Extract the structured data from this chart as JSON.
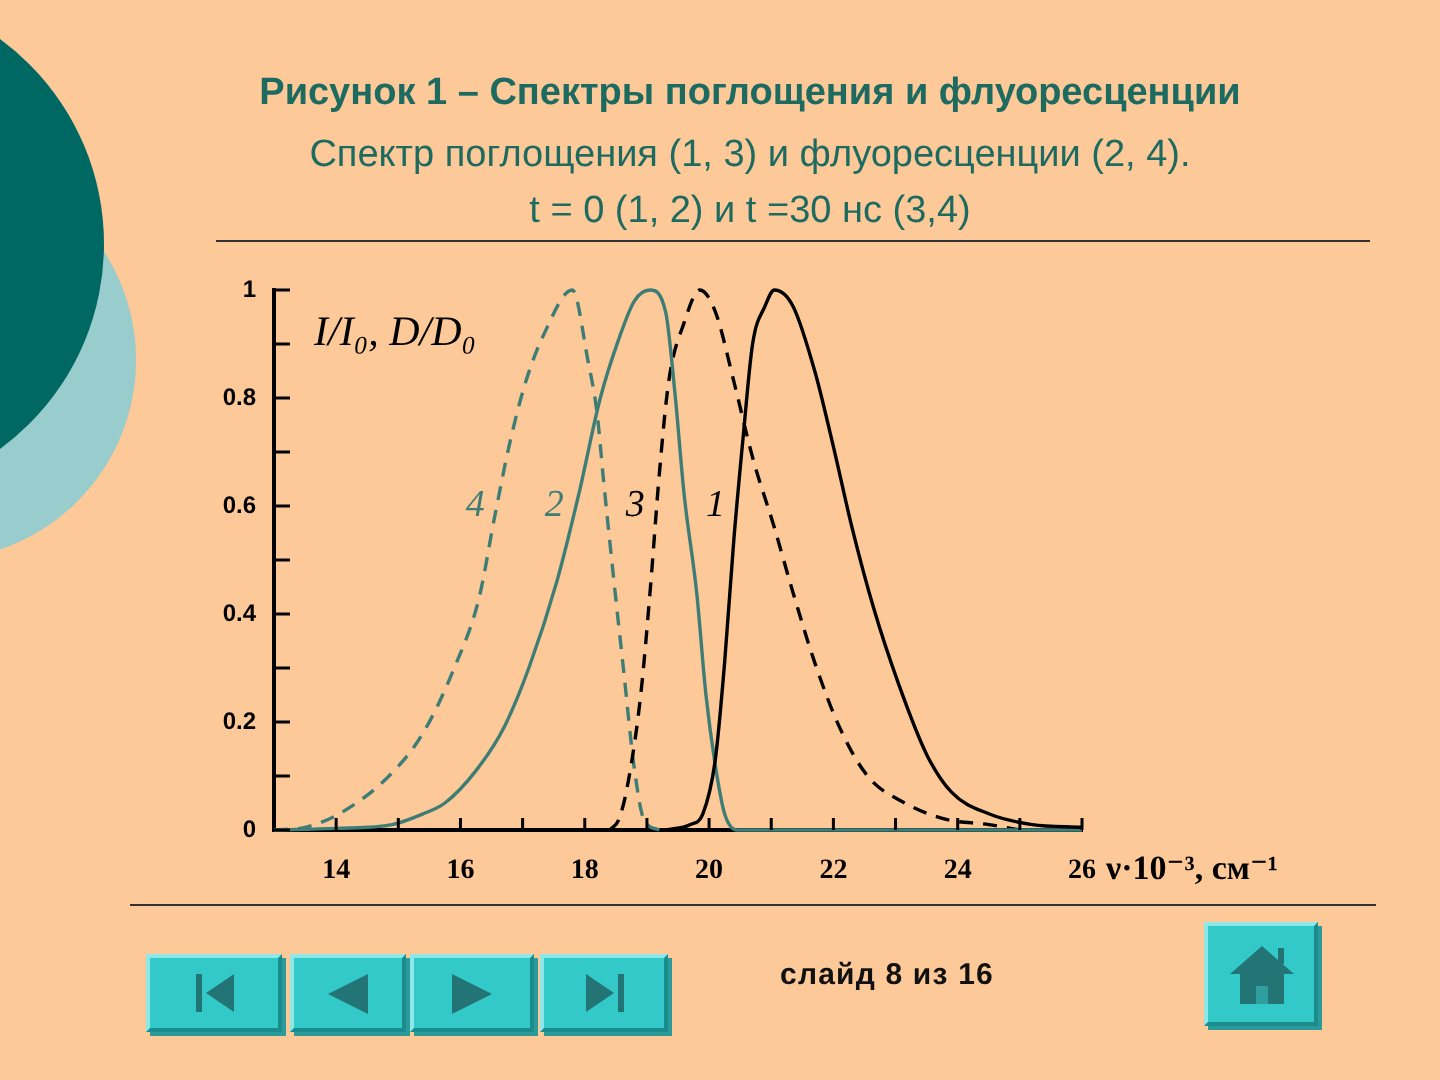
{
  "chart_data": {
    "type": "line",
    "title": "Рисунок 1 – Спектры поглощения и флуоресценции",
    "subtitle": "Спектр поглощения (1, 3) и флуоресценции (2, 4).\nt = 0 (1, 2) и t =30 нс (3,4)",
    "xlabel": "ν·10⁻³, см⁻¹",
    "ylabel": "I/I₀, D/D₀",
    "annotations": [
      "слайд 8 из 16"
    ],
    "xlim": [
      13,
      26
    ],
    "xticks": [
      14,
      {
        "value": 15,
        "label": null
      },
      16,
      {
        "value": 17,
        "label": null
      },
      18,
      {
        "value": 19,
        "label": null
      },
      20,
      {
        "value": 21,
        "label": null
      },
      22,
      {
        "value": 23,
        "label": null
      },
      24,
      {
        "value": 25,
        "label": null
      },
      26
    ],
    "ylim": [
      0,
      1
    ],
    "yticks": [
      0,
      {
        "value": 0.1,
        "label": null
      },
      0.2,
      {
        "value": 0.3,
        "label": null
      },
      0.4,
      {
        "value": 0.5,
        "label": null
      },
      0.6,
      {
        "value": 0.7,
        "label": null
      },
      0.8,
      {
        "value": 0.9,
        "label": null
      },
      1
    ],
    "grid": false,
    "legend": false,
    "marker": "none",
    "series": [
      {
        "name": "1",
        "color": "#000000",
        "line_style": "solid",
        "x": [
          19.3,
          19.7,
          19.9,
          20.1,
          20.25,
          20.4,
          20.55,
          20.7,
          20.9,
          21.05,
          21.35,
          21.7,
          22.0,
          22.3,
          22.65,
          23.05,
          23.5,
          23.9,
          24.5,
          25.2,
          26
        ],
        "values": [
          0,
          0.01,
          0.03,
          0.13,
          0.31,
          0.54,
          0.73,
          0.9,
          0.97,
          1,
          0.97,
          0.85,
          0.71,
          0.56,
          0.41,
          0.27,
          0.14,
          0.07,
          0.03,
          0.01,
          0.005
        ]
      },
      {
        "name": "2",
        "color": "#3e7d76",
        "line_style": "solid",
        "x": [
          13,
          14,
          14.9,
          15.4,
          15.75,
          16.25,
          16.7,
          17.1,
          17.55,
          17.9,
          18.25,
          18.55,
          18.8,
          19.05,
          19.3,
          19.45,
          19.6,
          19.8,
          19.95,
          20.1,
          20.25,
          20.45,
          26
        ],
        "values": [
          0,
          0.003,
          0.01,
          0.03,
          0.05,
          0.11,
          0.19,
          0.3,
          0.46,
          0.62,
          0.8,
          0.91,
          0.98,
          1,
          0.96,
          0.81,
          0.62,
          0.44,
          0.25,
          0.12,
          0.03,
          0,
          0
        ]
      },
      {
        "name": "3",
        "color": "#000000",
        "line_style": "dashed",
        "x": [
          18.4,
          18.55,
          18.7,
          18.9,
          19.05,
          19.2,
          19.35,
          19.6,
          19.85,
          20.1,
          20.4,
          20.7,
          21.05,
          21.35,
          21.7,
          22.1,
          22.55,
          23.15,
          23.8,
          24.5,
          25
        ],
        "values": [
          0,
          0.02,
          0.09,
          0.25,
          0.44,
          0.66,
          0.83,
          0.94,
          1,
          0.96,
          0.83,
          0.69,
          0.56,
          0.44,
          0.31,
          0.19,
          0.1,
          0.05,
          0.02,
          0.01,
          0
        ]
      },
      {
        "name": "4",
        "color": "#3e7d76",
        "line_style": "dashed",
        "x": [
          13,
          13.5,
          14.05,
          14.85,
          15.4,
          15.9,
          16.3,
          16.55,
          16.8,
          17.05,
          17.35,
          17.8,
          18.05,
          18.2,
          18.3,
          18.47,
          18.63,
          18.79,
          18.95,
          19.2
        ],
        "values": [
          0,
          0.005,
          0.03,
          0.1,
          0.18,
          0.3,
          0.43,
          0.58,
          0.72,
          0.83,
          0.92,
          1,
          0.87,
          0.77,
          0.65,
          0.46,
          0.29,
          0.12,
          0.02,
          0
        ]
      }
    ]
  }
}
